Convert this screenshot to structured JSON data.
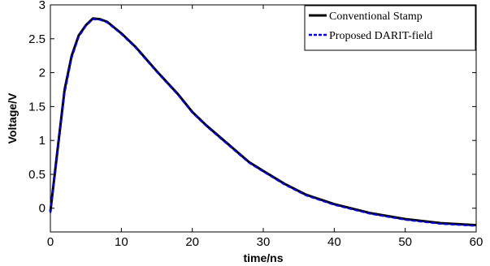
{
  "chart_data": {
    "type": "line",
    "title": "",
    "xlabel": "time/ns",
    "ylabel": "Voltage/V",
    "xlim": [
      0,
      60
    ],
    "ylim": [
      -0.35,
      3
    ],
    "grid": false,
    "legend_position": "top-right",
    "x_ticks": [
      "0",
      "10",
      "20",
      "30",
      "40",
      "50",
      "60"
    ],
    "y_ticks": [
      "0",
      "0.5",
      "1",
      "1.5",
      "2",
      "2.5",
      "3"
    ],
    "series": [
      {
        "name": "Conventional Stamp",
        "color": "#000000",
        "style": "solid",
        "x": [
          0,
          1,
          2,
          3,
          4,
          5,
          6,
          7,
          8,
          10,
          12,
          15,
          18,
          20,
          22,
          25,
          28,
          30,
          33,
          36,
          40,
          45,
          50,
          55,
          60
        ],
        "y": [
          -0.05,
          0.85,
          1.75,
          2.25,
          2.55,
          2.7,
          2.8,
          2.79,
          2.75,
          2.58,
          2.38,
          2.02,
          1.68,
          1.42,
          1.22,
          0.95,
          0.68,
          0.55,
          0.36,
          0.2,
          0.06,
          -0.07,
          -0.16,
          -0.22,
          -0.25
        ]
      },
      {
        "name": "Proposed DARIT-field",
        "color": "#0000ff",
        "style": "dashed",
        "x": [
          0,
          1,
          2,
          3,
          4,
          5,
          6,
          7,
          8,
          10,
          12,
          15,
          18,
          20,
          22,
          25,
          28,
          30,
          33,
          36,
          40,
          45,
          50,
          55,
          60
        ],
        "y": [
          -0.07,
          0.8,
          1.7,
          2.22,
          2.53,
          2.69,
          2.79,
          2.78,
          2.74,
          2.57,
          2.37,
          2.01,
          1.67,
          1.41,
          1.21,
          0.94,
          0.67,
          0.54,
          0.35,
          0.19,
          0.05,
          -0.08,
          -0.17,
          -0.23,
          -0.26
        ]
      }
    ]
  }
}
